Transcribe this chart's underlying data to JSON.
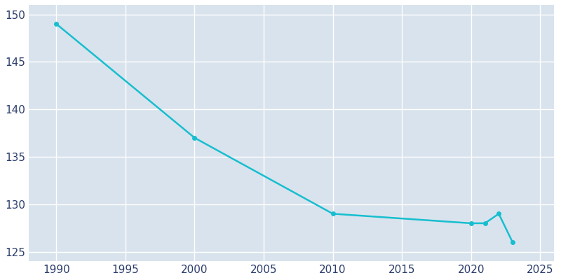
{
  "years": [
    1990,
    2000,
    2010,
    2020,
    2021,
    2022,
    2023
  ],
  "population": [
    149,
    137,
    129,
    128,
    128,
    129,
    126
  ],
  "line_color": "#17BECF",
  "marker_color": "#17BECF",
  "fig_background_color": "#FFFFFF",
  "axes_background_color": "#D9E3ED",
  "grid_color": "#FFFFFF",
  "text_color": "#2B3D6B",
  "xlim": [
    1988,
    2026
  ],
  "ylim": [
    124,
    151
  ],
  "yticks": [
    125,
    130,
    135,
    140,
    145,
    150
  ],
  "xticks": [
    1990,
    1995,
    2000,
    2005,
    2010,
    2015,
    2020,
    2025
  ],
  "line_width": 1.8,
  "marker_size": 4
}
